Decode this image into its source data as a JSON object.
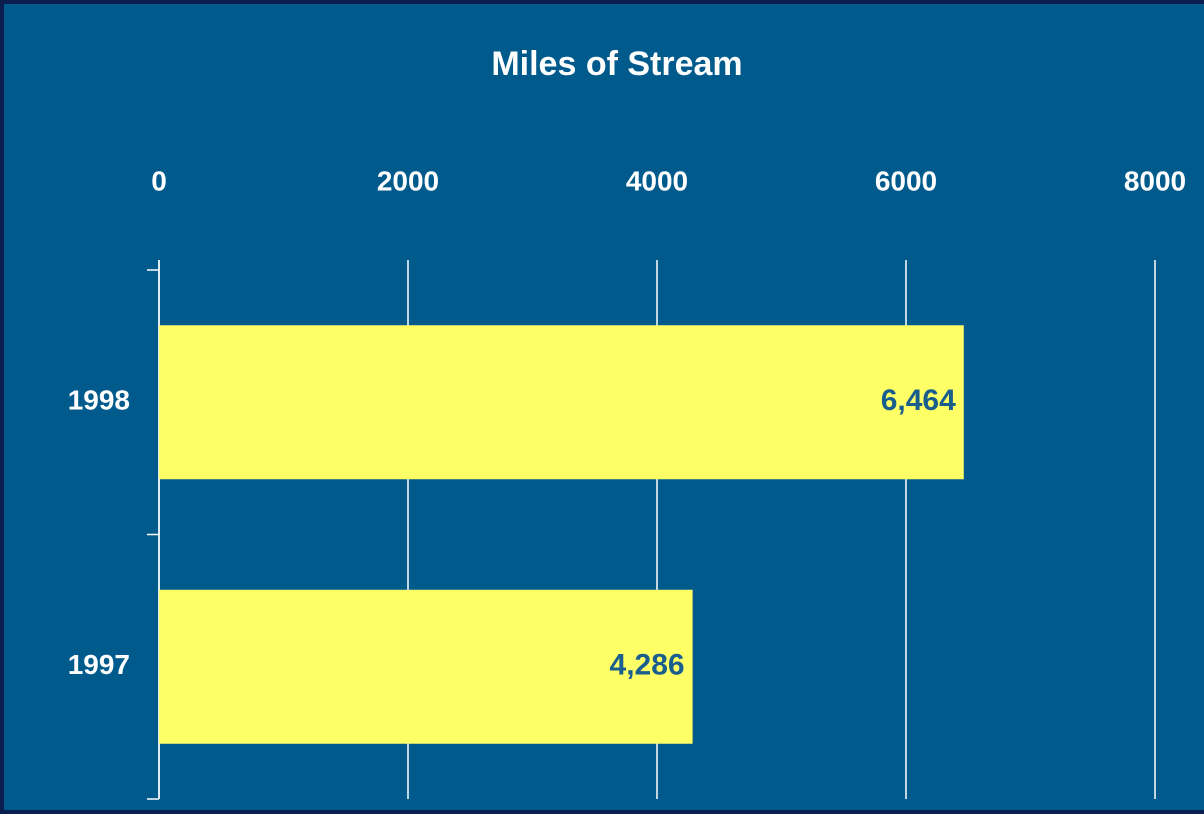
{
  "chart_data": {
    "type": "barh",
    "title": "Miles of Stream",
    "categories": [
      "1998",
      "1997"
    ],
    "values": [
      6464,
      4286
    ],
    "value_labels": [
      "6,464",
      "4,286"
    ],
    "color": "#ffff66",
    "xlim": [
      0,
      8000
    ],
    "xticks": [
      0,
      2000,
      4000,
      6000,
      8000
    ],
    "grid": true
  }
}
